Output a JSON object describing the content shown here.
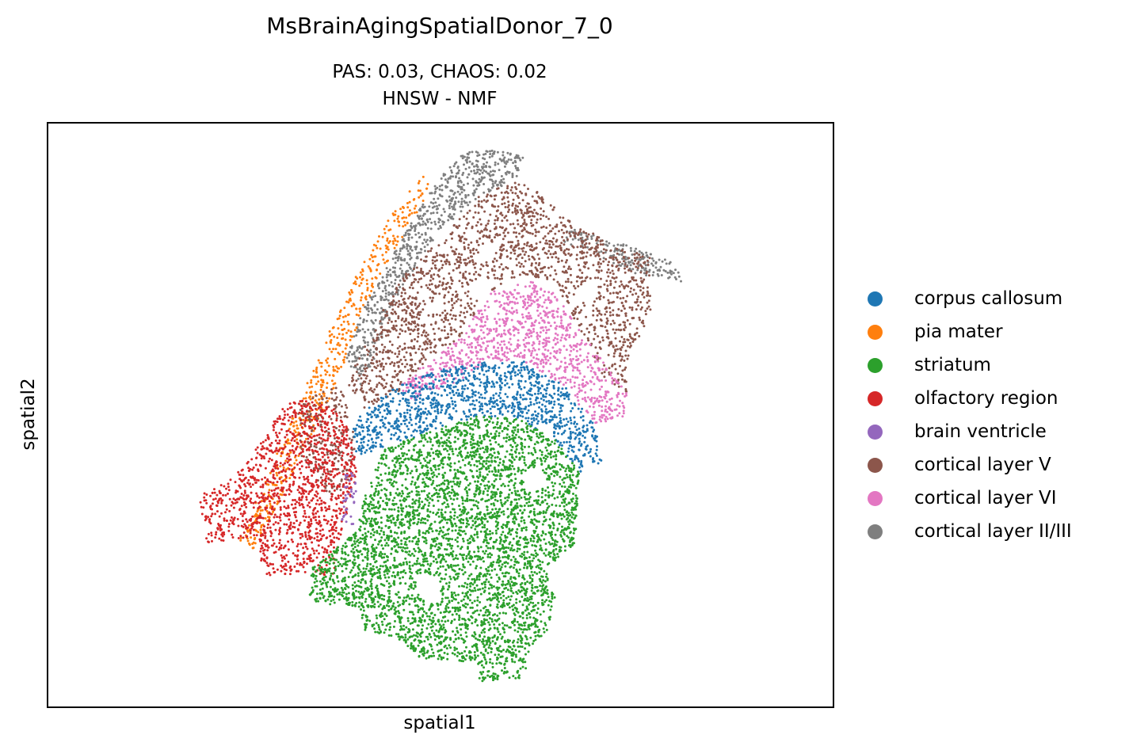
{
  "chart_data": {
    "type": "scatter",
    "title": "MsBrainAgingSpatialDonor_7_0",
    "subtitle_line1": "PAS: 0.03,  CHAOS: 0.02",
    "subtitle_line2": "HNSW - NMF",
    "xlabel": "spatial1",
    "ylabel": "spatial2",
    "legend_position": "right",
    "ticks": "none",
    "grid": false,
    "categories": [
      {
        "name": "corpus callosum",
        "color": "#1f77b4"
      },
      {
        "name": "pia mater",
        "color": "#ff7f0e"
      },
      {
        "name": "striatum",
        "color": "#2ca02c"
      },
      {
        "name": "olfactory region",
        "color": "#d62728"
      },
      {
        "name": "brain ventricle",
        "color": "#9467bd"
      },
      {
        "name": "cortical layer V",
        "color": "#8c564b"
      },
      {
        "name": "cortical layer VI",
        "color": "#e377c2"
      },
      {
        "name": "cortical layer II/III",
        "color": "#7f7f7f"
      }
    ]
  }
}
